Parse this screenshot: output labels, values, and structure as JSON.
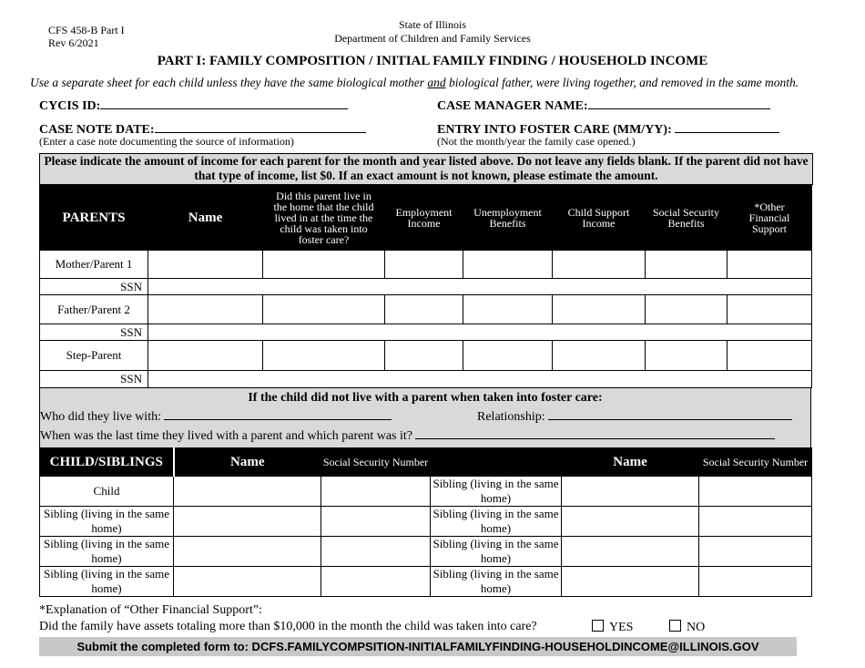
{
  "header": {
    "form_id": "CFS 458-B Part I",
    "revision": "Rev 6/2021",
    "state": "State of Illinois",
    "department": "Department of Children and Family Services",
    "title": "PART I: FAMILY COMPOSITION / INITIAL FAMILY FINDING / HOUSEHOLD INCOME",
    "instructions_pre": "Use a separate sheet for each child unless they have the same biological mother ",
    "instructions_and": "and",
    "instructions_post": " biological father, were living together, and removed in the same month."
  },
  "fields": {
    "cycis_id": "CYCIS ID:",
    "case_manager": "CASE MANAGER NAME:",
    "case_note_date": "CASE NOTE DATE:",
    "case_note_hint": "(Enter a case note documenting the source of information)",
    "entry_foster": "ENTRY INTO FOSTER CARE (MM/YY):",
    "entry_hint": "(Not the month/year the family case opened.)"
  },
  "income_notice": "Please indicate the amount of income for each parent for the month and year listed above.  Do not leave any fields blank.  If the parent did not have that type of income, list $0.  If an exact amount is not known, please estimate the amount.",
  "parents_table": {
    "headers": [
      "PARENTS",
      "Name",
      "Did this parent live in the home that the child lived in at the time the child was taken into foster care?",
      "Employment Income",
      "Unemployment Benefits",
      "Child Support Income",
      "Social Security Benefits",
      "*Other Financial Support"
    ],
    "rows": [
      "Mother/Parent 1",
      "SSN",
      "Father/Parent 2",
      "SSN",
      "Step-Parent",
      "SSN"
    ]
  },
  "no_parent": {
    "heading": "If the child did not live with a parent when taken into foster care:",
    "who": "Who did they live with:",
    "relationship": "Relationship:",
    "last_time": "When was the last time they lived with a parent and which parent was it?"
  },
  "children_table": {
    "headers": [
      "CHILD/SIBLINGS",
      "Name",
      "Social Security Number",
      "",
      "Name",
      "Social Security Number"
    ],
    "left_rows": [
      "Child",
      "Sibling (living in the same home)",
      "Sibling (living in the same home)",
      "Sibling (living in the same home)"
    ],
    "right_rows": [
      "Sibling (living in the same home)",
      "Sibling (living in the same home)",
      "Sibling (living in the same home)",
      "Sibling (living in the same home)"
    ]
  },
  "footer": {
    "explanation": "*Explanation of “Other Financial Support”:",
    "assets_question": "Did the family have assets totaling more than $10,000 in the month the child was taken into care?",
    "yes": "YES",
    "no": "NO",
    "submit": "Submit the completed form to:  DCFS.FAMILYCOMPSITION-INITIALFAMILYFINDING-HOUSEHOLDINCOME@ILLINOIS.GOV"
  }
}
